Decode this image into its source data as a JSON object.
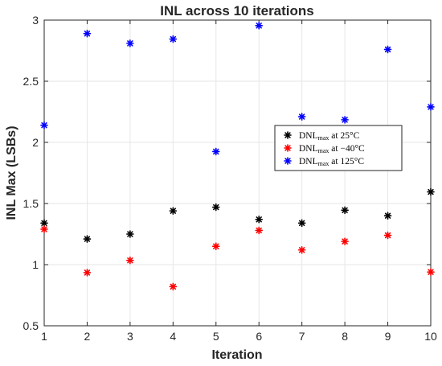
{
  "chart_data": {
    "type": "scatter",
    "title": "INL across 10 iterations",
    "xlabel": "Iteration",
    "ylabel": "INL Max (LSBs)",
    "xlim": [
      1,
      10
    ],
    "ylim": [
      0.5,
      3
    ],
    "xticks": [
      "1",
      "2",
      "3",
      "4",
      "5",
      "6",
      "7",
      "8",
      "9",
      "10"
    ],
    "yticks": [
      "0.5",
      "1",
      "1.5",
      "2",
      "2.5",
      "3"
    ],
    "grid": true,
    "legend_position": "right, mid-height",
    "marker": "*",
    "x": [
      1,
      2,
      3,
      4,
      5,
      6,
      7,
      8,
      9,
      10
    ],
    "series": [
      {
        "legend_main": "DNL",
        "legend_sub": "max",
        "legend_suffix": " at 25°C",
        "color": "#000000",
        "values": [
          1.34,
          1.21,
          1.25,
          1.44,
          1.47,
          1.37,
          1.34,
          1.445,
          1.4,
          1.595
        ]
      },
      {
        "legend_main": "DNL",
        "legend_sub": "max",
        "legend_suffix": " at −40°C",
        "color": "#ff0000",
        "values": [
          1.29,
          0.935,
          1.035,
          0.82,
          1.15,
          1.28,
          1.12,
          1.19,
          1.24,
          0.94
        ]
      },
      {
        "legend_main": "DNL",
        "legend_sub": "max",
        "legend_suffix": " at 125°C",
        "color": "#0000ff",
        "values": [
          2.14,
          2.89,
          2.81,
          2.845,
          1.925,
          2.955,
          2.21,
          2.185,
          2.76,
          2.29
        ]
      }
    ]
  }
}
